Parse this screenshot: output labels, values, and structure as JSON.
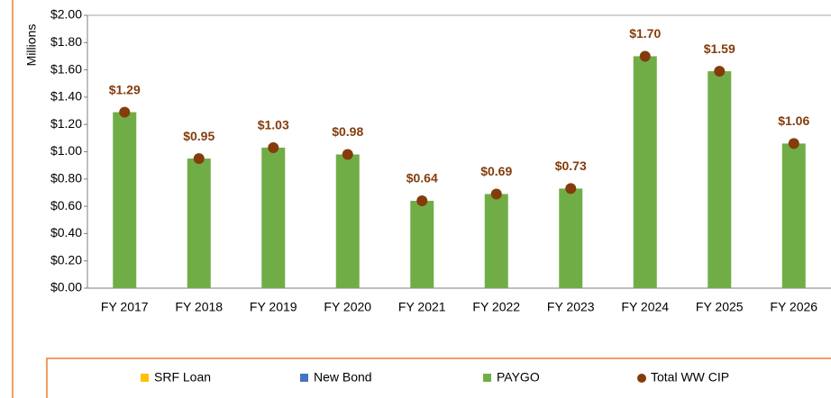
{
  "chart_data": {
    "type": "bar",
    "y_axis_label": "Millions",
    "categories": [
      "FY 2017",
      "FY 2018",
      "FY 2019",
      "FY 2020",
      "FY 2021",
      "FY 2022",
      "FY 2023",
      "FY 2024",
      "FY 2025",
      "FY 2026"
    ],
    "series": [
      {
        "name": "SRF Loan",
        "color": "#ffc000",
        "kind": "bar",
        "values": [
          0,
          0,
          0,
          0,
          0,
          0,
          0,
          0,
          0,
          0
        ]
      },
      {
        "name": "New Bond",
        "color": "#4472c4",
        "kind": "bar",
        "values": [
          0,
          0,
          0,
          0,
          0,
          0,
          0,
          0,
          0,
          0
        ]
      },
      {
        "name": "PAYGO",
        "color": "#70ad47",
        "kind": "bar",
        "values": [
          1.29,
          0.95,
          1.03,
          0.98,
          0.64,
          0.69,
          0.73,
          1.7,
          1.59,
          1.06
        ]
      },
      {
        "name": "Total WW CIP",
        "color": "#843c0c",
        "kind": "dot",
        "values": [
          1.29,
          0.95,
          1.03,
          0.98,
          0.64,
          0.69,
          0.73,
          1.7,
          1.59,
          1.06
        ],
        "value_labels": [
          "$1.29",
          "$0.95",
          "$1.03",
          "$0.98",
          "$0.64",
          "$0.69",
          "$0.73",
          "$1.70",
          "$1.59",
          "$1.06"
        ]
      }
    ],
    "ylim": [
      0,
      2
    ],
    "yticks": [
      {
        "value": 0,
        "label": "$0.00"
      },
      {
        "value": 0.2,
        "label": "$0.20"
      },
      {
        "value": 0.4,
        "label": "$0.40"
      },
      {
        "value": 0.6,
        "label": "$0.60"
      },
      {
        "value": 0.8,
        "label": "$0.80"
      },
      {
        "value": 1,
        "label": "$1.00"
      },
      {
        "value": 1.2,
        "label": "$1.20"
      },
      {
        "value": 1.4,
        "label": "$1.40"
      },
      {
        "value": 1.6,
        "label": "$1.60"
      },
      {
        "value": 1.8,
        "label": "$1.80"
      },
      {
        "value": 2,
        "label": "$2.00"
      }
    ],
    "grid": false,
    "legend": "bottom"
  }
}
